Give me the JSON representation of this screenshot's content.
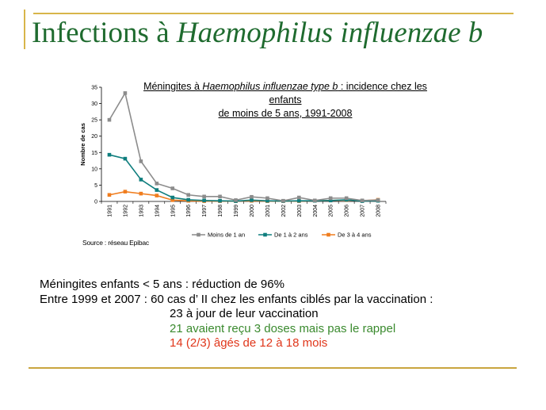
{
  "slide": {
    "title_prefix": "Infections à ",
    "title_italic": "Haemophilus influenzae b"
  },
  "chart_data": {
    "type": "line",
    "title_part1": "Méningites à ",
    "title_italic": "Haemophilus influenzae type b",
    "title_part2": " : incidence chez les enfants",
    "title_line2": "de moins de 5 ans, 1991-2008",
    "ylabel": "Nombre de cas",
    "ylim": [
      0,
      35
    ],
    "yticks": [
      "0",
      "5",
      "10",
      "15",
      "20",
      "25",
      "30",
      "35"
    ],
    "x": [
      "1991",
      "1992",
      "1993",
      "1994",
      "1995",
      "1996",
      "1997",
      "1998",
      "1999",
      "2000",
      "2001",
      "2002",
      "2003",
      "2004",
      "2005",
      "2006",
      "2007",
      "2008"
    ],
    "series": [
      {
        "name": "Moins de 1 an",
        "color": "#8c8c8c",
        "marker": "square",
        "values": [
          25,
          33.2,
          12.3,
          5.5,
          4,
          2,
          1.5,
          1.5,
          0.4,
          1.4,
          1,
          0.2,
          1.2,
          0.3,
          1,
          1,
          0.3,
          0.4
        ]
      },
      {
        "name": "De 1 à 2 ans",
        "color": "#0f7e7e",
        "marker": "square",
        "values": [
          14.3,
          13.1,
          6.7,
          3.5,
          1.2,
          0.5,
          0.3,
          0.2,
          0.1,
          0.4,
          0.2,
          0.1,
          0.2,
          0.2,
          0.3,
          0.5,
          0.1,
          0.2
        ]
      },
      {
        "name": "De 3 à 4 ans",
        "color": "#f07d1e",
        "marker": "square",
        "values": [
          2,
          3,
          2.4,
          1.8,
          0.4,
          0.2,
          0.1,
          0.1,
          0.1,
          0.2,
          0.1,
          0.1,
          0.1,
          0.2,
          0.3,
          0.4,
          0.2,
          0.5
        ]
      }
    ],
    "legend_position": "bottom",
    "grid": false
  },
  "source": "Source : réseau Epibac",
  "body": {
    "line1": "Méningites enfants < 5 ans : réduction de 96%",
    "line2": "Entre 1999 et 2007 : 60 cas d’ II chez les enfants ciblés par la vaccination :",
    "line3": "23 à jour de leur vaccination",
    "line4": "21 avaient reçu 3 doses mais pas le rappel",
    "line5": "14 (2/3) âgés de 12 à 18 mois"
  }
}
